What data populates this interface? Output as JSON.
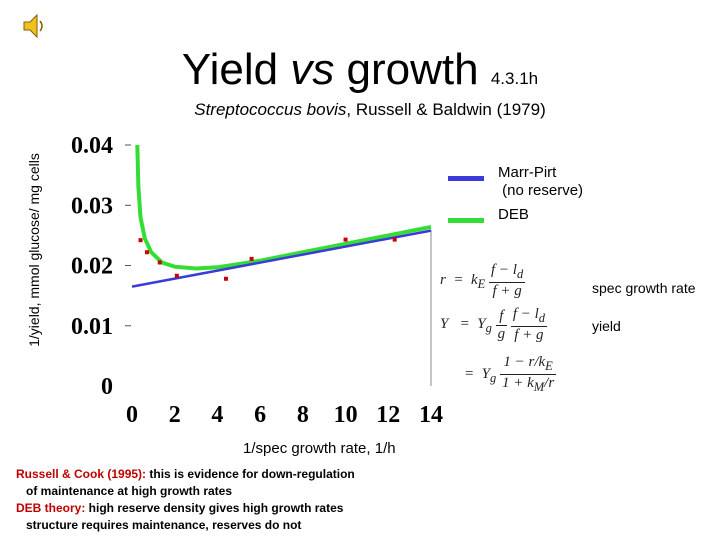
{
  "header": {
    "title_main": "Yield ",
    "title_italic": "vs",
    "title_rest": " growth",
    "section": "4.3.1h",
    "subtitle_italic": "Streptococcus bovis",
    "subtitle_rest": ", Russell & Baldwin (1979)"
  },
  "colors": {
    "marr_pirt": "#3b3bd9",
    "deb": "#33dd33",
    "points": "#cc0000"
  },
  "equations": {
    "r_label": "spec growth rate",
    "y_label": "yield"
  },
  "notes": {
    "line1_highlight": "Russell & Cook (1995):",
    "line1_rest": " this is evidence for down-regulation",
    "line2": "of maintenance at high growth rates",
    "line3_highlight": "DEB theory:",
    "line3_rest": " high reserve density gives high growth rates",
    "line4": "structure requires maintenance, reserves do not"
  },
  "chart_data": {
    "type": "scatter",
    "xlabel": "1/spec growth rate, 1/h",
    "ylabel": "1/yield, mmol glucose/ mg cells",
    "xlim": [
      0,
      14
    ],
    "ylim": [
      0,
      0.04
    ],
    "xticks": [
      "0",
      "2",
      "4",
      "6",
      "8",
      "10",
      "12",
      "14"
    ],
    "yticks": [
      "0",
      "0.01",
      "0.02",
      "0.03",
      "0.04"
    ],
    "points": [
      {
        "x": 0.4,
        "y": 0.0242
      },
      {
        "x": 0.7,
        "y": 0.0222
      },
      {
        "x": 1.3,
        "y": 0.0205
      },
      {
        "x": 2.1,
        "y": 0.0183
      },
      {
        "x": 4.4,
        "y": 0.0178
      },
      {
        "x": 5.6,
        "y": 0.0211
      },
      {
        "x": 10.0,
        "y": 0.0243
      },
      {
        "x": 12.3,
        "y": 0.0243
      }
    ],
    "series": [
      {
        "name": "Marr-Pirt\n (no reserve)",
        "values": [
          [
            0,
            0.0165
          ],
          [
            14,
            0.0258
          ]
        ]
      },
      {
        "name": "DEB",
        "values": [
          [
            0.25,
            0.04
          ],
          [
            0.3,
            0.033
          ],
          [
            0.4,
            0.028
          ],
          [
            0.6,
            0.0245
          ],
          [
            0.9,
            0.0222
          ],
          [
            1.4,
            0.0205
          ],
          [
            2.0,
            0.0198
          ],
          [
            3.0,
            0.0195
          ],
          [
            4.0,
            0.0197
          ],
          [
            6.0,
            0.0208
          ],
          [
            8.0,
            0.0222
          ],
          [
            10.0,
            0.0236
          ],
          [
            12.0,
            0.025
          ],
          [
            14.0,
            0.0264
          ]
        ]
      }
    ],
    "legend": "right"
  }
}
